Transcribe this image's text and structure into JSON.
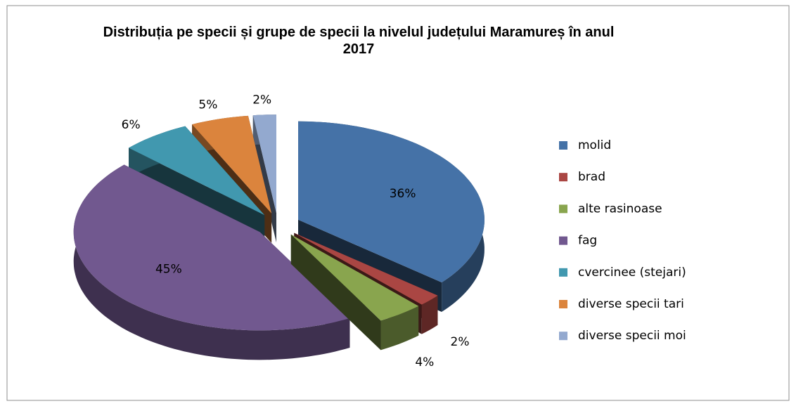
{
  "chart_data": {
    "type": "pie",
    "title": "Distribuția pe specii și grupe de specii la nivelul județului Maramureș în anul 2017",
    "categories": [
      "molid",
      "brad",
      "alte rasinoase",
      "fag",
      "cvercinee (stejari)",
      "diverse specii tari",
      "diverse specii moi"
    ],
    "values": [
      36,
      2,
      4,
      45,
      6,
      5,
      2
    ],
    "value_labels": [
      "36%",
      "2%",
      "4%",
      "45%",
      "6%",
      "5%",
      "2%"
    ],
    "colors": [
      "#4572a7",
      "#aa4643",
      "#89a54e",
      "#71588f",
      "#4198af",
      "#db843d",
      "#93a9cf"
    ],
    "legend": "right"
  }
}
